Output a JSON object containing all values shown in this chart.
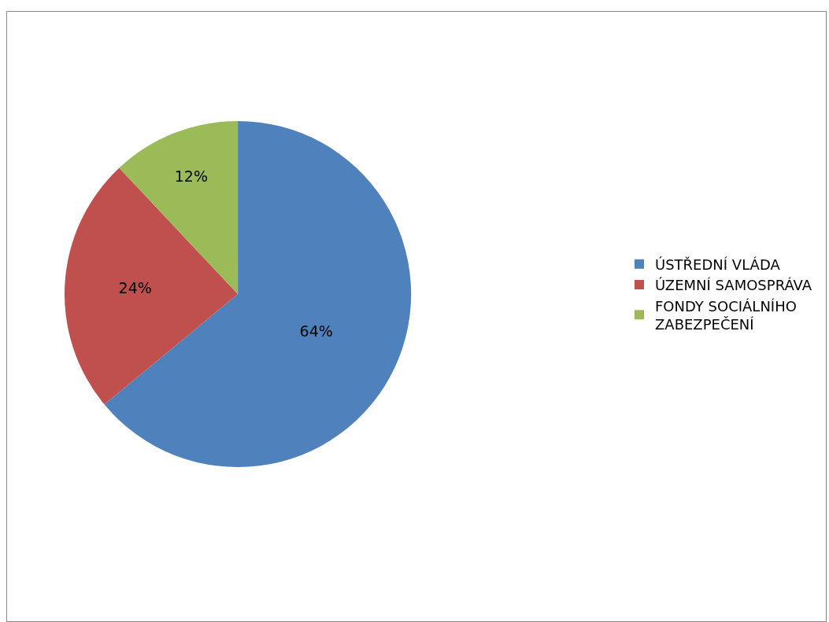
{
  "chart_data": {
    "type": "pie",
    "categories": [
      "ÚSTŘEDNÍ VLÁDA",
      "ÚZEMNÍ SAMOSPRÁVA",
      "FONDY SOCIÁLNÍHO ZABEZPEČENÍ"
    ],
    "values": [
      64,
      24,
      12
    ],
    "colors": [
      "#4f81bd",
      "#c0504d",
      "#9bbb59"
    ],
    "value_labels": [
      "64%",
      "24%",
      "12%"
    ],
    "legend": "right"
  }
}
